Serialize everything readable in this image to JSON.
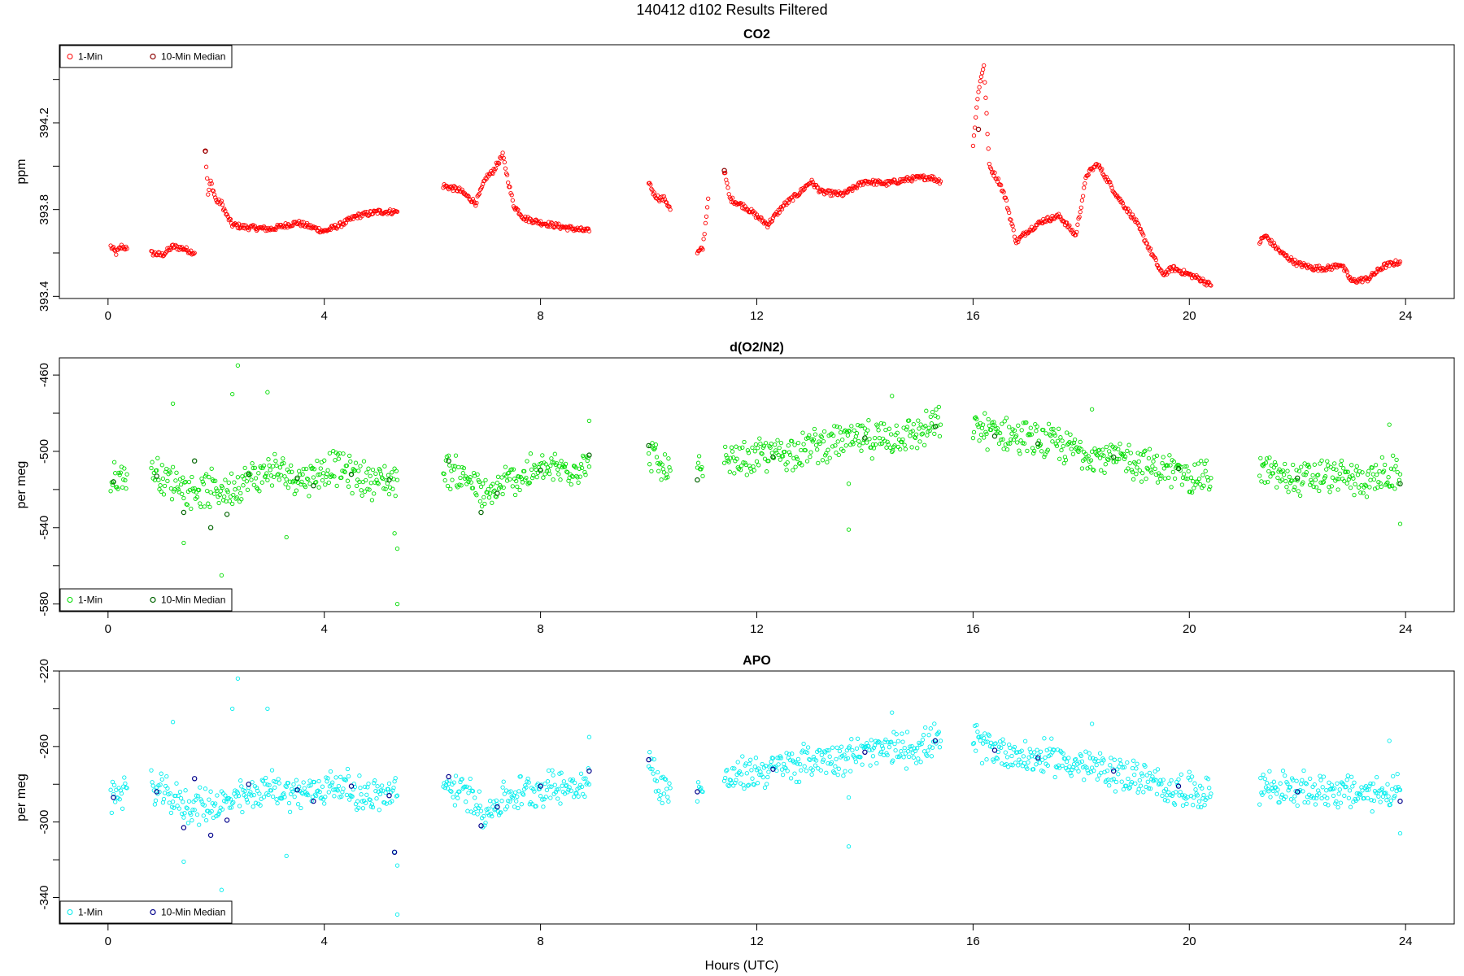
{
  "figure": {
    "title": "140412   d102   Results Filtered",
    "xlabel": "Hours (UTC)"
  },
  "chart_data": [
    {
      "type": "scatter",
      "title": "CO2",
      "xlabel": "Hours (UTC)",
      "ylabel": "ppm",
      "xlim": [
        -0.9,
        24.9
      ],
      "ylim": [
        393.39,
        394.56
      ],
      "xticks": [
        0,
        4,
        8,
        12,
        16,
        20,
        24
      ],
      "yticks": [
        393.4,
        393.8,
        394.2
      ],
      "ytick_labels": [
        "393.4",
        "393.8",
        "394.2"
      ],
      "legend": {
        "position": "top-left",
        "entries": [
          "1-Min",
          "10-Min Median"
        ]
      },
      "colors": {
        "one_min": "#ff0000",
        "median": "#8b0000"
      },
      "segments": [
        {
          "x": [
            0.05,
            0.15,
            0.25,
            0.35
          ],
          "y": [
            393.63,
            393.6,
            393.63,
            393.62
          ]
        },
        {
          "x": [
            0.8,
            1.0,
            1.2,
            1.4,
            1.6
          ],
          "y": [
            393.6,
            393.59,
            393.63,
            393.62,
            393.6
          ]
        },
        {
          "x": [
            1.8,
            1.85,
            1.9,
            2.0,
            2.1,
            2.2,
            2.3,
            2.5,
            3.0,
            3.5,
            4.0,
            4.3,
            4.6,
            5.0,
            5.35
          ],
          "y": [
            394.07,
            393.87,
            393.93,
            393.84,
            393.83,
            393.77,
            393.73,
            393.72,
            393.71,
            393.74,
            393.7,
            393.73,
            393.77,
            393.79,
            393.79
          ]
        },
        {
          "x": [
            6.2,
            6.5,
            6.8,
            7.0,
            7.1,
            7.3,
            7.5,
            7.7,
            8.0,
            8.4,
            8.9
          ],
          "y": [
            393.91,
            393.89,
            393.83,
            393.95,
            393.97,
            394.05,
            393.82,
            393.76,
            393.74,
            393.72,
            393.7
          ]
        },
        {
          "x": [
            10.0,
            10.1,
            10.2,
            10.3,
            10.4
          ],
          "y": [
            393.93,
            393.87,
            393.85,
            393.85,
            393.8
          ]
        },
        {
          "x": [
            10.9,
            11.0,
            11.1
          ],
          "y": [
            393.6,
            393.62,
            393.85
          ]
        },
        {
          "x": [
            11.4,
            11.5,
            11.8,
            12.2,
            12.5,
            12.8,
            13.0,
            13.2,
            13.6,
            14.0,
            14.4,
            14.8,
            15.2,
            15.4
          ],
          "y": [
            393.98,
            393.85,
            393.81,
            393.73,
            393.82,
            393.88,
            393.93,
            393.88,
            393.87,
            393.93,
            393.92,
            393.94,
            393.95,
            393.93
          ]
        },
        {
          "x": [
            16.0,
            16.1,
            16.2,
            16.3,
            16.5,
            16.6,
            16.7,
            16.8,
            17.0,
            17.3,
            17.6,
            17.9,
            18.1,
            18.3,
            18.5,
            18.7,
            19.0,
            19.3,
            19.5,
            19.7,
            20.0,
            20.2,
            20.4
          ],
          "y": [
            394.1,
            394.35,
            394.47,
            394.0,
            393.92,
            393.85,
            393.75,
            393.65,
            393.7,
            393.75,
            393.77,
            393.68,
            393.96,
            394.01,
            393.93,
            393.85,
            393.75,
            393.6,
            393.5,
            393.53,
            393.5,
            393.48,
            393.45
          ]
        },
        {
          "x": [
            21.3,
            21.4,
            21.7,
            22.0,
            22.3,
            22.6,
            22.8,
            23.0,
            23.3,
            23.6,
            23.9
          ],
          "y": [
            393.65,
            393.68,
            393.6,
            393.55,
            393.53,
            393.53,
            393.55,
            393.47,
            393.48,
            393.54,
            393.56
          ]
        }
      ],
      "spread": 0.012,
      "medians": [
        {
          "x": 1.8,
          "y": 394.07
        },
        {
          "x": 11.4,
          "y": 393.98
        },
        {
          "x": 16.1,
          "y": 394.17
        }
      ]
    },
    {
      "type": "scatter",
      "title": "d(O2/N2)",
      "xlabel": "Hours (UTC)",
      "ylabel": "per meg",
      "xlim": [
        -0.9,
        24.9
      ],
      "ylim": [
        -584,
        -451
      ],
      "xticks": [
        0,
        4,
        8,
        12,
        16,
        20,
        24
      ],
      "yticks": [
        -580,
        -540,
        -500,
        -460
      ],
      "ytick_labels": [
        "-580",
        "-540",
        "-500",
        "-460"
      ],
      "legend": {
        "position": "bottom-left",
        "entries": [
          "1-Min",
          "10-Min Median"
        ]
      },
      "colors": {
        "one_min": "#00dd00",
        "median": "#006400"
      },
      "segments": [
        {
          "x": [
            0.05,
            0.2,
            0.35
          ],
          "y": [
            -517,
            -514,
            -512
          ]
        },
        {
          "x": [
            0.8,
            1.5,
            2.2,
            3.0,
            3.6,
            4.2,
            4.8,
            5.35
          ],
          "y": [
            -510,
            -520,
            -520,
            -510,
            -514,
            -508,
            -515,
            -515
          ]
        },
        {
          "x": [
            6.2,
            6.7,
            7.0,
            7.4,
            8.0,
            8.9
          ],
          "y": [
            -508,
            -515,
            -525,
            -515,
            -510,
            -508
          ]
        },
        {
          "x": [
            10.0,
            10.2,
            10.4
          ],
          "y": [
            -497,
            -509,
            -510
          ]
        },
        {
          "x": [
            10.9,
            11.0
          ],
          "y": [
            -508,
            -513
          ]
        },
        {
          "x": [
            11.4,
            12.0,
            12.6,
            13.2,
            13.8,
            14.4,
            15.0,
            15.4
          ],
          "y": [
            -507,
            -503,
            -500,
            -496,
            -494,
            -493,
            -490,
            -486
          ]
        },
        {
          "x": [
            16.0,
            16.5,
            17.0,
            17.5,
            18.0,
            18.5,
            19.0,
            19.5,
            20.0,
            20.4
          ],
          "y": [
            -487,
            -490,
            -494,
            -496,
            -500,
            -503,
            -505,
            -510,
            -512,
            -514
          ]
        },
        {
          "x": [
            21.3,
            22.0,
            22.6,
            23.2,
            23.9
          ],
          "y": [
            -510,
            -515,
            -513,
            -515,
            -512
          ]
        }
      ],
      "spread": 7,
      "outliers": [
        {
          "x": 1.2,
          "y": -475
        },
        {
          "x": 1.4,
          "y": -548
        },
        {
          "x": 2.1,
          "y": -565
        },
        {
          "x": 2.4,
          "y": -455
        },
        {
          "x": 2.3,
          "y": -470
        },
        {
          "x": 2.95,
          "y": -469
        },
        {
          "x": 3.3,
          "y": -545
        },
        {
          "x": 5.35,
          "y": -580
        },
        {
          "x": 5.3,
          "y": -543
        },
        {
          "x": 5.35,
          "y": -551
        },
        {
          "x": 8.9,
          "y": -484
        },
        {
          "x": 13.7,
          "y": -541
        },
        {
          "x": 13.7,
          "y": -517
        },
        {
          "x": 14.5,
          "y": -471
        },
        {
          "x": 18.2,
          "y": -478
        },
        {
          "x": 23.9,
          "y": -538
        },
        {
          "x": 23.7,
          "y": -486
        }
      ],
      "medians": [
        {
          "x": 0.1,
          "y": -516
        },
        {
          "x": 0.9,
          "y": -513
        },
        {
          "x": 1.4,
          "y": -532
        },
        {
          "x": 1.6,
          "y": -505
        },
        {
          "x": 1.9,
          "y": -540
        },
        {
          "x": 2.2,
          "y": -533
        },
        {
          "x": 2.6,
          "y": -512
        },
        {
          "x": 3.5,
          "y": -514
        },
        {
          "x": 3.8,
          "y": -518
        },
        {
          "x": 4.5,
          "y": -512
        },
        {
          "x": 5.2,
          "y": -515
        },
        {
          "x": 6.3,
          "y": -505
        },
        {
          "x": 6.9,
          "y": -532
        },
        {
          "x": 7.2,
          "y": -522
        },
        {
          "x": 8.0,
          "y": -510
        },
        {
          "x": 8.9,
          "y": -502
        },
        {
          "x": 10.0,
          "y": -497
        },
        {
          "x": 10.9,
          "y": -515
        },
        {
          "x": 12.3,
          "y": -503
        },
        {
          "x": 14.0,
          "y": -493
        },
        {
          "x": 15.3,
          "y": -487
        },
        {
          "x": 16.4,
          "y": -492
        },
        {
          "x": 17.2,
          "y": -496
        },
        {
          "x": 18.6,
          "y": -503
        },
        {
          "x": 19.8,
          "y": -509
        },
        {
          "x": 22.0,
          "y": -514
        },
        {
          "x": 23.9,
          "y": -517
        }
      ]
    },
    {
      "type": "scatter",
      "title": "APO",
      "xlabel": "Hours (UTC)",
      "ylabel": "per meg",
      "xlim": [
        -0.9,
        24.9
      ],
      "ylim": [
        -354,
        -220
      ],
      "xticks": [
        0,
        4,
        8,
        12,
        16,
        20,
        24
      ],
      "yticks": [
        -340,
        -300,
        -260,
        -220
      ],
      "ytick_labels": [
        "-340",
        "-300",
        "-260",
        "-220"
      ],
      "legend": {
        "position": "bottom-left",
        "entries": [
          "1-Min",
          "10-Min Median"
        ]
      },
      "colors": {
        "one_min": "#00eeee",
        "median": "#00008b"
      },
      "segments": [
        {
          "x": [
            0.05,
            0.2,
            0.35
          ],
          "y": [
            -287,
            -284,
            -282
          ]
        },
        {
          "x": [
            0.8,
            1.5,
            2.2,
            3.0,
            3.6,
            4.2,
            4.8,
            5.35
          ],
          "y": [
            -282,
            -292,
            -290,
            -282,
            -285,
            -280,
            -286,
            -286
          ]
        },
        {
          "x": [
            6.2,
            6.7,
            7.0,
            7.4,
            8.0,
            8.9
          ],
          "y": [
            -280,
            -286,
            -295,
            -286,
            -282,
            -280
          ]
        },
        {
          "x": [
            10.0,
            10.2,
            10.4
          ],
          "y": [
            -267,
            -281,
            -282
          ]
        },
        {
          "x": [
            10.9,
            11.0
          ],
          "y": [
            -281,
            -284
          ]
        },
        {
          "x": [
            11.4,
            12.0,
            12.6,
            13.2,
            13.8,
            14.4,
            15.0,
            15.4
          ],
          "y": [
            -278,
            -273,
            -270,
            -266,
            -264,
            -262,
            -260,
            -257
          ]
        },
        {
          "x": [
            16.0,
            16.5,
            17.0,
            17.5,
            18.0,
            18.5,
            19.0,
            19.5,
            20.0,
            20.4
          ],
          "y": [
            -257,
            -262,
            -266,
            -266,
            -270,
            -273,
            -276,
            -282,
            -283,
            -285
          ]
        },
        {
          "x": [
            21.3,
            22.0,
            22.6,
            23.2,
            23.9
          ],
          "y": [
            -280,
            -284,
            -283,
            -285,
            -283
          ]
        }
      ],
      "spread": 7,
      "outliers": [
        {
          "x": 1.2,
          "y": -247
        },
        {
          "x": 1.4,
          "y": -321
        },
        {
          "x": 2.1,
          "y": -336
        },
        {
          "x": 2.4,
          "y": -224
        },
        {
          "x": 2.3,
          "y": -240
        },
        {
          "x": 2.95,
          "y": -240
        },
        {
          "x": 3.3,
          "y": -318
        },
        {
          "x": 5.35,
          "y": -349
        },
        {
          "x": 5.3,
          "y": -316
        },
        {
          "x": 5.35,
          "y": -323
        },
        {
          "x": 8.9,
          "y": -255
        },
        {
          "x": 13.7,
          "y": -313
        },
        {
          "x": 13.7,
          "y": -287
        },
        {
          "x": 14.5,
          "y": -242
        },
        {
          "x": 18.2,
          "y": -248
        },
        {
          "x": 23.9,
          "y": -306
        },
        {
          "x": 23.7,
          "y": -257
        }
      ],
      "medians": [
        {
          "x": 0.1,
          "y": -287
        },
        {
          "x": 0.9,
          "y": -284
        },
        {
          "x": 1.4,
          "y": -303
        },
        {
          "x": 1.6,
          "y": -277
        },
        {
          "x": 1.9,
          "y": -307
        },
        {
          "x": 2.2,
          "y": -299
        },
        {
          "x": 2.6,
          "y": -280
        },
        {
          "x": 3.5,
          "y": -283
        },
        {
          "x": 3.8,
          "y": -289
        },
        {
          "x": 4.5,
          "y": -281
        },
        {
          "x": 5.2,
          "y": -286
        },
        {
          "x": 5.3,
          "y": -316
        },
        {
          "x": 6.3,
          "y": -276
        },
        {
          "x": 6.9,
          "y": -302
        },
        {
          "x": 7.2,
          "y": -292
        },
        {
          "x": 8.0,
          "y": -281
        },
        {
          "x": 8.9,
          "y": -273
        },
        {
          "x": 10.0,
          "y": -267
        },
        {
          "x": 10.9,
          "y": -284
        },
        {
          "x": 12.3,
          "y": -272
        },
        {
          "x": 14.0,
          "y": -263
        },
        {
          "x": 15.3,
          "y": -257
        },
        {
          "x": 16.4,
          "y": -262
        },
        {
          "x": 17.2,
          "y": -266
        },
        {
          "x": 18.6,
          "y": -273
        },
        {
          "x": 19.8,
          "y": -281
        },
        {
          "x": 22.0,
          "y": -284
        },
        {
          "x": 23.9,
          "y": -289
        }
      ]
    }
  ]
}
